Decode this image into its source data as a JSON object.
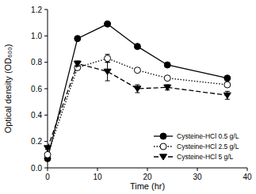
{
  "chart_data": {
    "type": "line",
    "x_label": "Time (hr)",
    "y_label": "Optical density (OD₆₀₀)",
    "x": [
      0,
      6,
      12,
      18,
      24,
      36
    ],
    "xlim": [
      0,
      40
    ],
    "xticks": [
      0,
      10,
      20,
      30,
      40
    ],
    "ylim": [
      0,
      1.2
    ],
    "yticks": [
      {
        "value": 0,
        "label": "0.0"
      },
      {
        "value": 0.2,
        "label": "0.2"
      },
      {
        "value": 0.4,
        "label": "0.4"
      },
      {
        "value": 0.6,
        "label": "0.6"
      },
      {
        "value": 0.8,
        "label": "0.8"
      },
      {
        "value": 1,
        "label": "1.0"
      },
      {
        "value": 1.2,
        "label": "1.2"
      }
    ],
    "grid": false,
    "legend": "lower right",
    "series": [
      {
        "name": "Cysteine-HCl 0.5 g/L",
        "color": "#000000",
        "marker": "circle",
        "line_style": "solid",
        "values": [
          0.07,
          0.98,
          1.09,
          0.92,
          0.78,
          0.68
        ],
        "errors": [
          0.01,
          0.01,
          0.01,
          0.01,
          0.01,
          0.01
        ]
      },
      {
        "name": "Cysteine-HCl 2.5 g/L",
        "color": "#000000",
        "marker": "circle-open",
        "line_style": "dotted",
        "values": [
          0.1,
          0.76,
          0.83,
          0.74,
          0.68,
          0.63
        ],
        "errors": [
          0.01,
          0.01,
          0.03,
          0.01,
          0.01,
          0.01
        ]
      },
      {
        "name": "Cysteine-HCl 5 g/L",
        "color": "#000000",
        "marker": "triangle-down",
        "line_style": "dashed",
        "values": [
          0.15,
          0.79,
          0.73,
          0.6,
          0.61,
          0.55
        ],
        "errors": [
          0.01,
          0.02,
          0.07,
          0.03,
          0.02,
          0.03
        ]
      }
    ]
  }
}
